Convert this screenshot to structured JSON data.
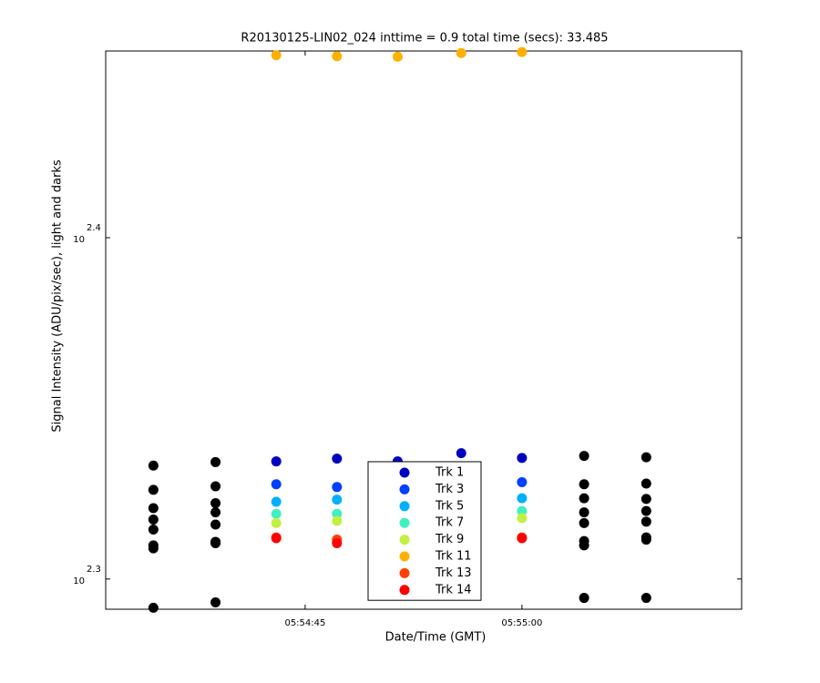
{
  "chart_data": {
    "type": "scatter",
    "title": "R20130125-LIN02_024 inttime = 0.9 total time (secs): 33.485",
    "x_label": "Date/Time (GMT)",
    "y_label": "Signal Intensity (ADU/pix/sec), light and darks",
    "y_scale": "log",
    "x": [
      "05:54:34.5",
      "05:54:38.8",
      "05:54:43.0",
      "05:54:47.2",
      "05:54:51.4",
      "05:54:55.8",
      "05:55:00.0",
      "05:55:04.3",
      "05:55:08.6"
    ],
    "xlim": [
      "05:54:31.2",
      "05:55:15.2"
    ],
    "xticks": [
      "05:54:45",
      "05:55:00"
    ],
    "ylim": [
      195.5,
      284.9
    ],
    "yticks": [
      {
        "value": 199.526,
        "label": "10",
        "exponent": "2.3"
      },
      {
        "value": 251.189,
        "label": "10",
        "exponent": "2.4"
      }
    ],
    "series": [
      {
        "color": "#000000",
        "values": [
          215.4,
          215.9,
          null,
          null,
          null,
          null,
          null,
          216.8,
          216.6
        ]
      },
      {
        "color": "#000000",
        "values": [
          211.9,
          212.4,
          null,
          null,
          null,
          null,
          null,
          212.7,
          212.8
        ]
      },
      {
        "color": "#000000",
        "values": [
          209.3,
          210.0,
          null,
          null,
          null,
          null,
          null,
          210.7,
          210.6
        ]
      },
      {
        "color": "#000000",
        "values": [
          207.7,
          208.7,
          null,
          null,
          null,
          null,
          null,
          208.7,
          208.9
        ]
      },
      {
        "color": "#000000",
        "values": [
          206.3,
          207.0,
          null,
          null,
          null,
          null,
          null,
          207.2,
          207.4
        ]
      },
      {
        "color": "#000000",
        "values": [
          204.1,
          204.6,
          null,
          null,
          null,
          null,
          null,
          204.7,
          205.2
        ]
      },
      {
        "color": "#000000",
        "values": [
          203.7,
          204.4,
          null,
          null,
          null,
          null,
          null,
          204.1,
          204.9
        ]
      },
      {
        "color": "#000000",
        "values": [
          195.7,
          196.4,
          null,
          null,
          null,
          null,
          null,
          197.0,
          197.0
        ]
      },
      {
        "name": "Trk 1",
        "color": "#0000c0",
        "values": [
          null,
          null,
          216.0,
          216.4,
          216.0,
          217.2,
          216.5,
          null,
          null
        ]
      },
      {
        "name": "Trk 3",
        "color": "#0040ff",
        "values": [
          null,
          null,
          212.7,
          212.3,
          null,
          null,
          213.0,
          null,
          null
        ]
      },
      {
        "name": "Trk 5",
        "color": "#00b0ff",
        "values": [
          null,
          null,
          210.2,
          210.5,
          null,
          null,
          210.7,
          null,
          null
        ]
      },
      {
        "name": "Trk 7",
        "color": "#40f0c0",
        "values": [
          null,
          null,
          208.5,
          208.5,
          null,
          null,
          208.9,
          null,
          null
        ]
      },
      {
        "name": "Trk 9",
        "color": "#c0f040",
        "values": [
          null,
          null,
          207.2,
          207.5,
          null,
          null,
          207.9,
          null,
          null
        ]
      },
      {
        "name": "Trk 11",
        "color": "#ffb000",
        "values": [
          null,
          null,
          284.1,
          283.9,
          283.8,
          284.5,
          284.7,
          null,
          null
        ]
      },
      {
        "name": "Trk 13",
        "color": "#ff4000",
        "values": [
          null,
          null,
          205.2,
          204.9,
          null,
          null,
          205.2,
          null,
          null
        ]
      },
      {
        "name": "Trk 14",
        "color": "#ff0000",
        "values": [
          null,
          null,
          205.1,
          204.4,
          null,
          null,
          205.1,
          null,
          null
        ]
      }
    ]
  }
}
